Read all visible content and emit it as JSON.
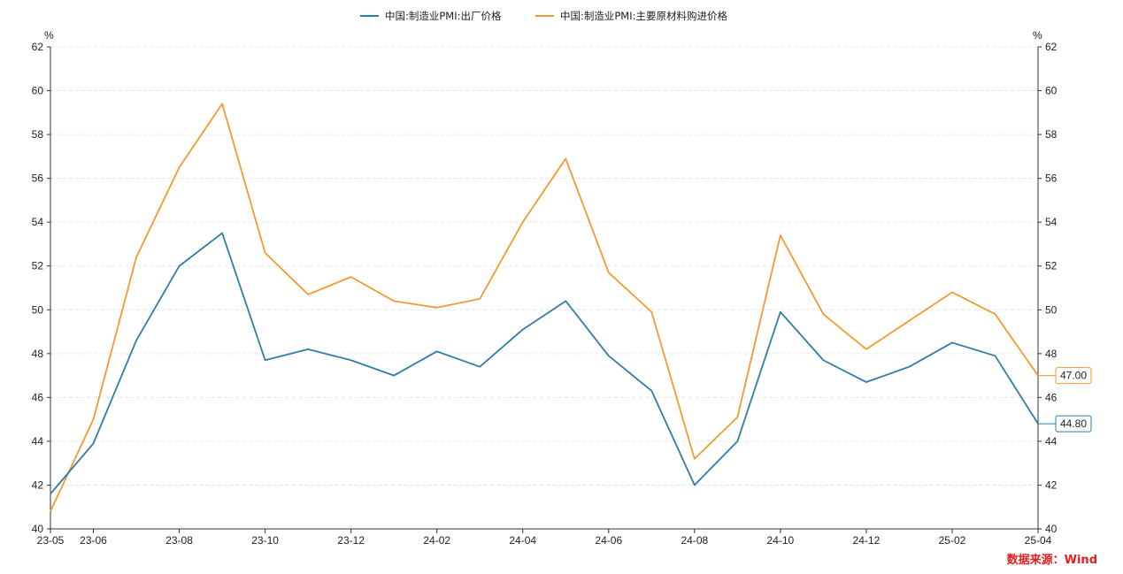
{
  "chart_data": {
    "type": "line",
    "x": [
      "23-05",
      "23-06",
      "23-07",
      "23-08",
      "23-09",
      "23-10",
      "23-11",
      "23-12",
      "24-01",
      "24-02",
      "24-03",
      "24-04",
      "24-05",
      "24-06",
      "24-07",
      "24-08",
      "24-09",
      "24-10",
      "24-11",
      "24-12",
      "25-01",
      "25-02",
      "25-03",
      "25-04"
    ],
    "xtick_labels": [
      "23-05",
      "23-06",
      "23-08",
      "23-10",
      "23-12",
      "24-02",
      "24-04",
      "24-06",
      "24-08",
      "24-10",
      "24-12",
      "25-02",
      "25-04"
    ],
    "series": [
      {
        "name": "中国:制造业PMI:出厂价格",
        "color": "#2e7ea6",
        "values": [
          41.6,
          43.9,
          48.6,
          52.0,
          53.5,
          47.7,
          48.2,
          47.7,
          47.0,
          48.1,
          47.4,
          49.1,
          50.4,
          47.9,
          46.3,
          42.0,
          44.0,
          49.9,
          47.7,
          46.7,
          47.4,
          48.5,
          47.9,
          44.8
        ],
        "end_label": "44.80"
      },
      {
        "name": "中国:制造业PMI:主要原材料购进价格",
        "color": "#f39a2e",
        "values": [
          40.8,
          45.0,
          52.4,
          56.5,
          59.4,
          52.6,
          50.7,
          51.5,
          50.4,
          50.1,
          50.5,
          54.0,
          56.9,
          51.7,
          49.9,
          43.2,
          45.1,
          53.4,
          49.8,
          48.2,
          49.5,
          50.8,
          49.8,
          47.0
        ],
        "end_label": "47.00"
      }
    ],
    "ylim": [
      40,
      62
    ],
    "yticks": [
      40,
      42,
      44,
      46,
      48,
      50,
      52,
      54,
      56,
      58,
      60,
      62
    ],
    "yunit_left": "%",
    "yunit_right": "%",
    "grid": true,
    "legend_position": "top-center"
  },
  "source": "数据来源：Wind"
}
